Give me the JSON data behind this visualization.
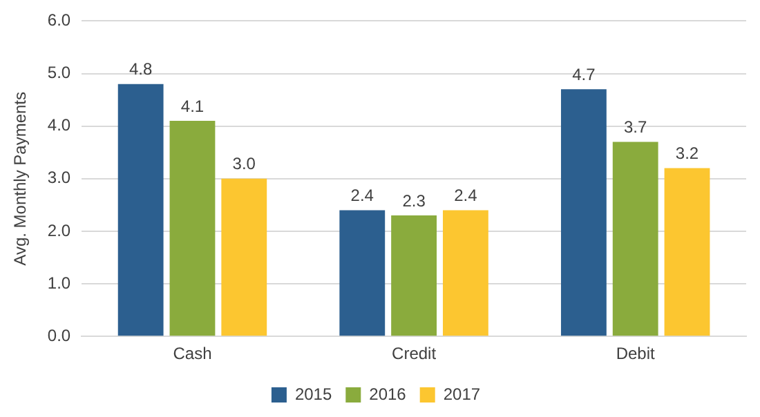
{
  "chart_data": {
    "type": "bar",
    "ylabel": "Avg. Monthly Payments",
    "categories": [
      "Cash",
      "Credit",
      "Debit"
    ],
    "series": [
      {
        "name": "2015",
        "color": "#2c5f8f",
        "values": [
          4.8,
          2.4,
          4.7
        ],
        "value_labels": [
          "4.8",
          "2.4",
          "4.7"
        ]
      },
      {
        "name": "2016",
        "color": "#8aab3d",
        "values": [
          4.1,
          2.3,
          3.7
        ],
        "value_labels": [
          "4.1",
          "2.3",
          "3.7"
        ]
      },
      {
        "name": "2017",
        "color": "#fcc630",
        "values": [
          3.0,
          2.4,
          3.2
        ],
        "value_labels": [
          "3.0",
          "2.4",
          "3.2"
        ]
      }
    ],
    "ylim": [
      0,
      6
    ],
    "yticks": [
      {
        "value": 0,
        "label": "0.0"
      },
      {
        "value": 1,
        "label": "1.0"
      },
      {
        "value": 2,
        "label": "2.0"
      },
      {
        "value": 3,
        "label": "3.0"
      },
      {
        "value": 4,
        "label": "4.0"
      },
      {
        "value": 5,
        "label": "5.0"
      },
      {
        "value": 6,
        "label": "6.0"
      }
    ],
    "grid": "y",
    "legend": "bottom"
  }
}
